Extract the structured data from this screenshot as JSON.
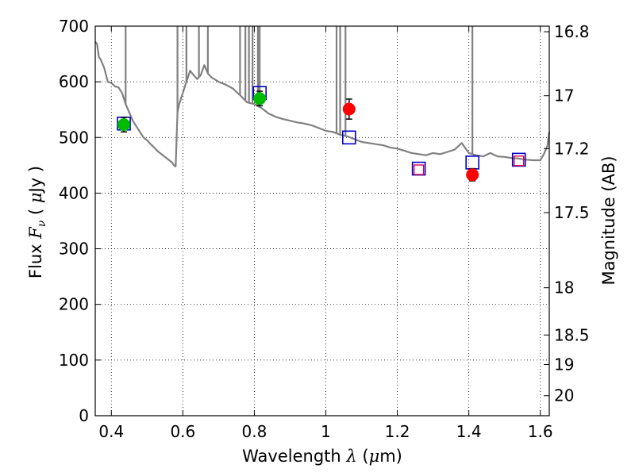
{
  "chart_data": {
    "type": "scatter",
    "xlabel": {
      "prefix": "Wavelength  ",
      "symbol": "λ",
      "unit_open": " (",
      "unit_mu": "μ",
      "unit_close": "m)"
    },
    "ylabel": {
      "prefix": "Flux  ",
      "symbol": "F",
      "subscript": "ν",
      "unit_open": "  ( ",
      "unit_mu": "μ",
      "unit_close": "Jy )"
    },
    "y2label": "Magnitude (AB)",
    "xlim": [
      0.355,
      1.625
    ],
    "ylim": [
      0,
      700
    ],
    "xticks": [
      0.4,
      0.6,
      0.8,
      1.0,
      1.2,
      1.4,
      1.6
    ],
    "xtick_labels": [
      "0.4",
      "0.6",
      "0.8",
      "1",
      "1.2",
      "1.4",
      "1.6"
    ],
    "yticks": [
      0,
      100,
      200,
      300,
      400,
      500,
      600,
      700
    ],
    "ytick_labels": [
      "0",
      "100",
      "200",
      "300",
      "400",
      "500",
      "600",
      "700"
    ],
    "y2ticks": [
      {
        "label": "16.8",
        "flux": 690
      },
      {
        "label": "17",
        "flux": 575
      },
      {
        "label": "17.2",
        "flux": 480
      },
      {
        "label": "17.5",
        "flux": 365
      },
      {
        "label": "18",
        "flux": 230
      },
      {
        "label": "18.5",
        "flux": 145
      },
      {
        "label": "19",
        "flux": 92
      },
      {
        "label": "20",
        "flux": 36
      }
    ],
    "grid": true,
    "colors": {
      "model": "#808080",
      "obs_green": "#00bb00",
      "obs_red": "#ff0000",
      "model_box": "#0000cc",
      "model_box_red": "#dd0044"
    },
    "series": [
      {
        "kind": "model_spectrum",
        "x": [
          0.355,
          0.36,
          0.365,
          0.37,
          0.38,
          0.39,
          0.4,
          0.41,
          0.42,
          0.43,
          0.44,
          0.45,
          0.46,
          0.47,
          0.48,
          0.49,
          0.5,
          0.51,
          0.52,
          0.53,
          0.54,
          0.55,
          0.56,
          0.57,
          0.575,
          0.58,
          0.585,
          0.59,
          0.6,
          0.61,
          0.62,
          0.63,
          0.64,
          0.65,
          0.66,
          0.67,
          0.68,
          0.7,
          0.72,
          0.74,
          0.76,
          0.78,
          0.8,
          0.82,
          0.84,
          0.86,
          0.88,
          0.9,
          0.92,
          0.94,
          0.96,
          0.98,
          1.0,
          1.02,
          1.04,
          1.06,
          1.08,
          1.1,
          1.12,
          1.14,
          1.16,
          1.18,
          1.2,
          1.22,
          1.24,
          1.26,
          1.28,
          1.3,
          1.32,
          1.34,
          1.36,
          1.38,
          1.4,
          1.42,
          1.44,
          1.46,
          1.48,
          1.5,
          1.52,
          1.54,
          1.56,
          1.58,
          1.6,
          1.61,
          1.62,
          1.625
        ],
        "y": [
          672,
          668,
          645,
          640,
          625,
          600,
          598,
          592,
          590,
          580,
          560,
          545,
          530,
          520,
          510,
          500,
          495,
          488,
          482,
          475,
          470,
          465,
          460,
          455,
          450,
          448,
          545,
          560,
          580,
          600,
          620,
          612,
          605,
          612,
          630,
          615,
          608,
          600,
          595,
          588,
          576,
          563,
          560,
          553,
          543,
          537,
          533,
          530,
          527,
          525,
          522,
          517,
          512,
          510,
          505,
          502,
          497,
          492,
          490,
          488,
          486,
          482,
          480,
          476,
          472,
          470,
          468,
          472,
          470,
          474,
          478,
          490,
          472,
          468,
          466,
          472,
          466,
          465,
          463,
          462,
          460,
          459,
          459,
          470,
          485,
          510
        ]
      },
      {
        "kind": "emission_lines",
        "x": [
          0.44,
          0.585,
          0.61,
          0.645,
          0.67,
          0.76,
          0.775,
          0.785,
          0.795,
          0.81,
          0.815,
          1.03,
          1.04,
          1.055,
          1.41
        ]
      },
      {
        "kind": "model_photometry",
        "x": [
          0.435,
          0.815,
          1.065,
          1.26,
          1.41,
          1.54
        ],
        "y": [
          525,
          580,
          500,
          444,
          455,
          460
        ]
      },
      {
        "kind": "model_photometry_inner",
        "x": [
          1.26,
          1.54
        ],
        "y": [
          442,
          458
        ]
      },
      {
        "kind": "observed",
        "x": [
          0.435,
          0.815,
          1.065,
          1.41
        ],
        "y": [
          523,
          570,
          551,
          433
        ],
        "yerr": [
          13,
          13,
          18,
          11
        ],
        "color": [
          "green",
          "green",
          "red",
          "red"
        ]
      }
    ]
  }
}
